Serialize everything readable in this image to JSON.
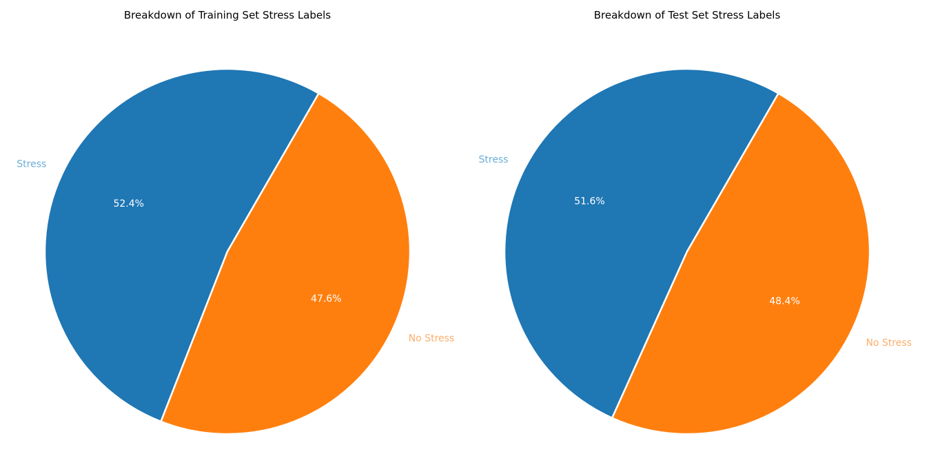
{
  "chart_data": [
    {
      "type": "pie",
      "title": "Breakdown of Training Set Stress Labels",
      "categories": [
        "Stress",
        "No Stress"
      ],
      "values": [
        52.4,
        47.6
      ],
      "value_labels": [
        "52.4%",
        "47.6%"
      ],
      "colors": [
        "#1f77b4",
        "#ff7f0e"
      ],
      "label_colors": [
        "#6aaed6",
        "#fdae6b"
      ],
      "legend": "none"
    },
    {
      "type": "pie",
      "title": "Breakdown of Test Set Stress Labels",
      "categories": [
        "Stress",
        "No Stress"
      ],
      "values": [
        51.6,
        48.4
      ],
      "value_labels": [
        "51.6%",
        "48.4%"
      ],
      "colors": [
        "#1f77b4",
        "#ff7f0e"
      ],
      "label_colors": [
        "#6aaed6",
        "#fdae6b"
      ],
      "legend": "none"
    }
  ]
}
